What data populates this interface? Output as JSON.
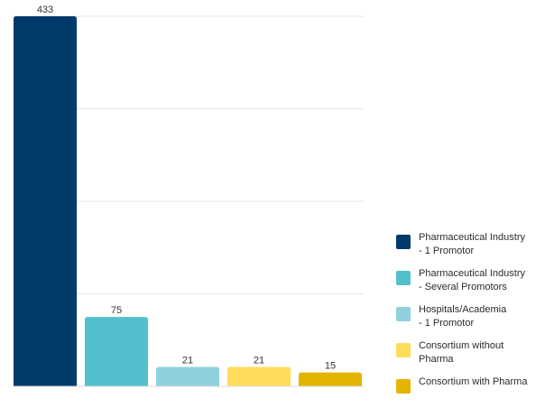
{
  "chart_data": {
    "type": "bar",
    "title": "",
    "xlabel": "",
    "ylabel": "",
    "ylim": [
      0,
      400
    ],
    "grid": true,
    "legend_position": "right",
    "categories": [
      "Pharmaceutical Industry\n- 1 Promotor",
      "Pharmaceutical Industry\n- Several Promotors",
      "Hospitals/Academia\n- 1 Promotor",
      "Consortium without\nPharma",
      "Consortium with Pharma"
    ],
    "values": [
      433,
      75,
      21,
      21,
      15
    ],
    "data_labels": [
      "433",
      "75",
      "21",
      "21",
      "15"
    ],
    "colors": [
      "#003a6b",
      "#52c0cc",
      "#8fd0dc",
      "#fedd5d",
      "#e4b500"
    ]
  }
}
